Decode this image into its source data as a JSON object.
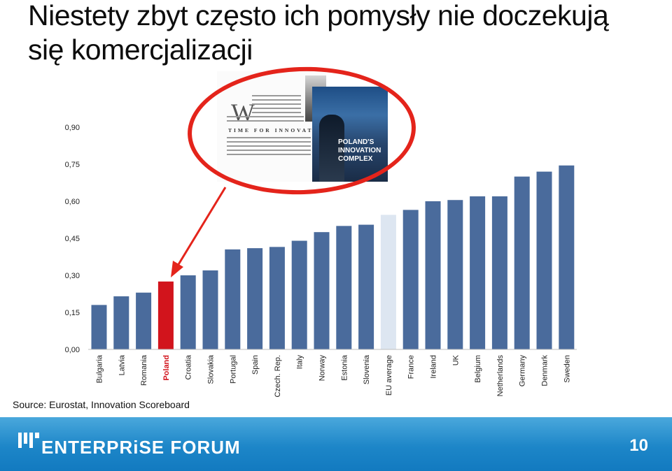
{
  "slide": {
    "title": "Niestety zbyt często ich pomysły nie doczekują się komercjalizacji",
    "source": "Source: Eurostat, Innovation Scoreboard",
    "page_number": "10"
  },
  "inset": {
    "cover_text": "POLAND'S INNOVATION COMPLEX",
    "article_headline": "TIME FOR INNOVATION",
    "article_initial": "W"
  },
  "footer": {
    "logo_text": "ENTERPRiSE FORUM"
  },
  "colors": {
    "bar": "#4a6b9c",
    "highlight": "#d2141c",
    "average": "#dde6f1",
    "arrow": "#e4241b",
    "footer": "#1d86c8"
  },
  "chart_data": {
    "type": "bar",
    "categories": [
      "Bulgaria",
      "Latvia",
      "Romania",
      "Poland",
      "Croatia",
      "Slovakia",
      "Portugal",
      "Spain",
      "Czech. Rep.",
      "Italy",
      "Norway",
      "Estonia",
      "Slovenia",
      "EU average",
      "France",
      "Ireland",
      "UK",
      "Belgium",
      "Netherlands",
      "Germany",
      "Denmark",
      "Sweden"
    ],
    "values": [
      0.18,
      0.215,
      0.23,
      0.275,
      0.3,
      0.32,
      0.405,
      0.41,
      0.415,
      0.44,
      0.475,
      0.5,
      0.505,
      0.545,
      0.565,
      0.6,
      0.605,
      0.62,
      0.62,
      0.7,
      0.72,
      0.745
    ],
    "highlight": [
      "Poland"
    ],
    "average_category": "EU average",
    "yticks": [
      "0,00",
      "0,15",
      "0,30",
      "0,45",
      "0,60",
      "0,75",
      "0,90"
    ],
    "ylim": [
      0,
      0.9
    ],
    "grid": false,
    "legend": "none"
  }
}
